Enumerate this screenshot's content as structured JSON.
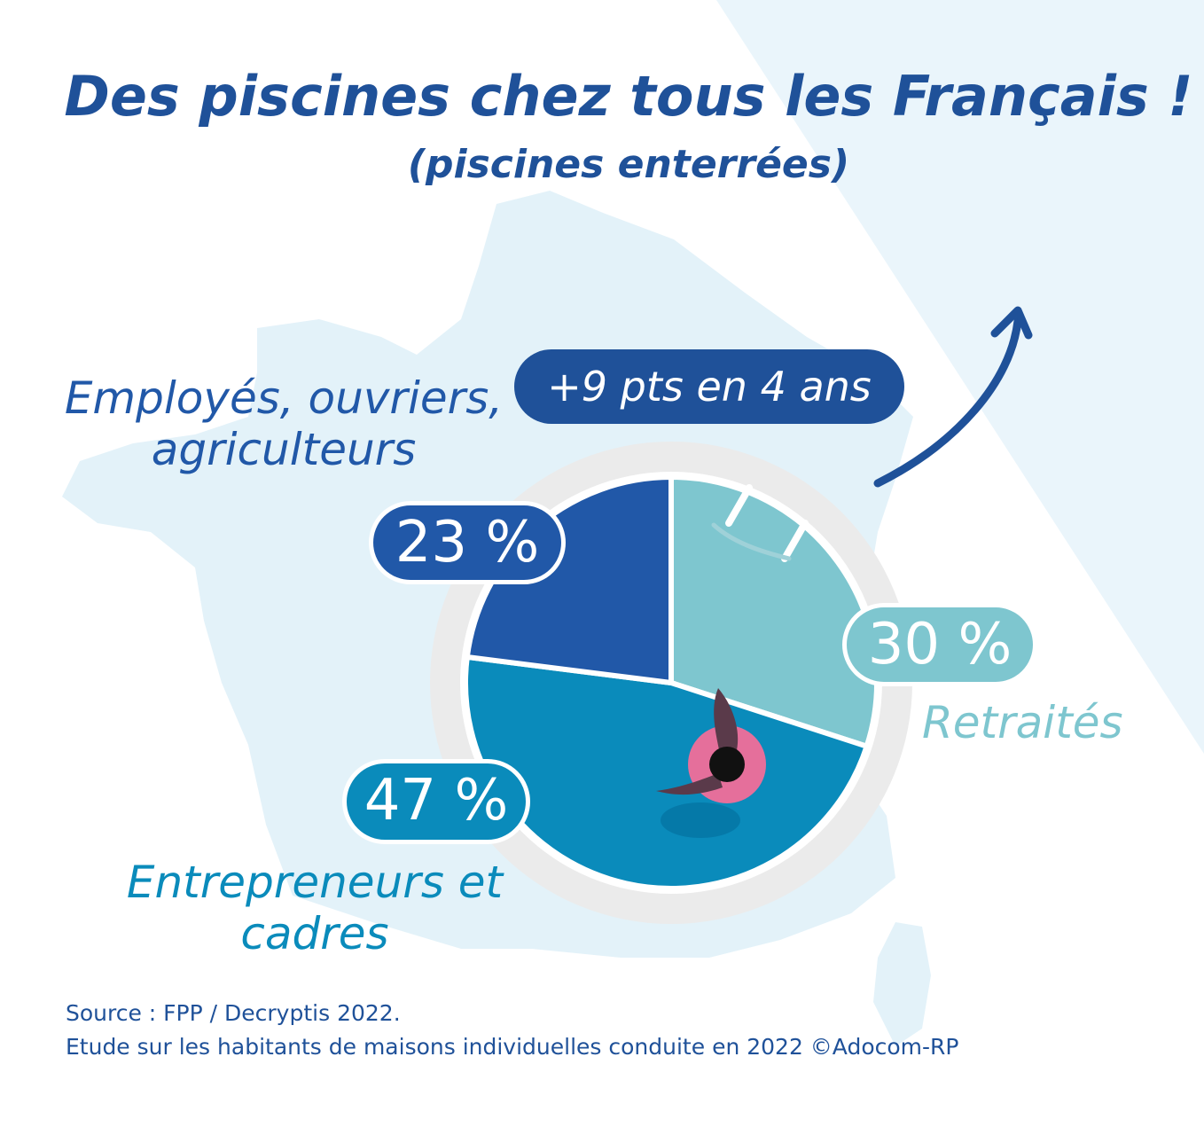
{
  "title": "Des piscines chez tous les Français !",
  "subtitle": "(piscines enterrées)",
  "badge": "+9 pts en 4 ans",
  "labels": {
    "employes": "Employés, ouvriers, agriculteurs",
    "entrepreneurs": "Entrepreneurs et cadres",
    "retraites": "Retraités"
  },
  "colors": {
    "employes": "#2158a8",
    "entrepreneurs": "#0a8bbb",
    "retraites": "#7ec6cf",
    "title": "#1f5199",
    "map": "#e3f2f9",
    "rim": "#ebebeb"
  },
  "chart_data": {
    "type": "pie",
    "title": "Des piscines chez tous les Français !",
    "subtitle": "(piscines enterrées)",
    "unit": "%",
    "slices": [
      {
        "name": "Retraités",
        "value": 30,
        "label": "30 %"
      },
      {
        "name": "Entrepreneurs et cadres",
        "value": 47,
        "label": "47 %"
      },
      {
        "name": "Employés, ouvriers, agriculteurs",
        "value": 23,
        "label": "23 %"
      }
    ],
    "annotation": "+9 pts en 4 ans"
  },
  "source": {
    "line1": "Source :  FPP / Decryptis 2022.",
    "line2": "Etude sur les habitants de maisons individuelles conduite en 2022  ©Adocom-RP"
  }
}
